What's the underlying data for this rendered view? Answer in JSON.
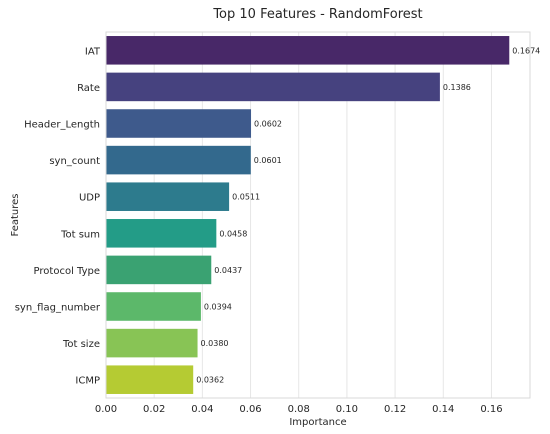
{
  "chart_data": {
    "type": "bar",
    "orientation": "horizontal",
    "title": "Top 10 Features - RandomForest",
    "xlabel": "Importance",
    "ylabel": "Features",
    "categories": [
      "IAT",
      "Rate",
      "Header_Length",
      "syn_count",
      "UDP",
      "Tot sum",
      "Protocol Type",
      "syn_flag_number",
      "Tot size",
      "ICMP"
    ],
    "values": [
      0.1674,
      0.1386,
      0.0602,
      0.0601,
      0.0511,
      0.0458,
      0.0437,
      0.0394,
      0.038,
      0.0362
    ],
    "value_labels": [
      "0.1674",
      "0.1386",
      "0.0602",
      "0.0601",
      "0.0511",
      "0.0458",
      "0.0437",
      "0.0394",
      "0.0380",
      "0.0362"
    ],
    "xlim": [
      0,
      0.176
    ],
    "xticks": [
      0,
      0.02,
      0.04,
      0.06,
      0.08,
      0.1,
      0.12,
      0.14,
      0.16
    ],
    "xtick_labels": [
      "0.00",
      "0.02",
      "0.04",
      "0.06",
      "0.08",
      "0.10",
      "0.12",
      "0.14",
      "0.16"
    ],
    "grid": "vertical",
    "colors": [
      "#482868",
      "#46427f",
      "#3e5a8c",
      "#33698d",
      "#2d7b8d",
      "#239c87",
      "#3aa272",
      "#5cb86a",
      "#88c455",
      "#b5cb33"
    ]
  }
}
